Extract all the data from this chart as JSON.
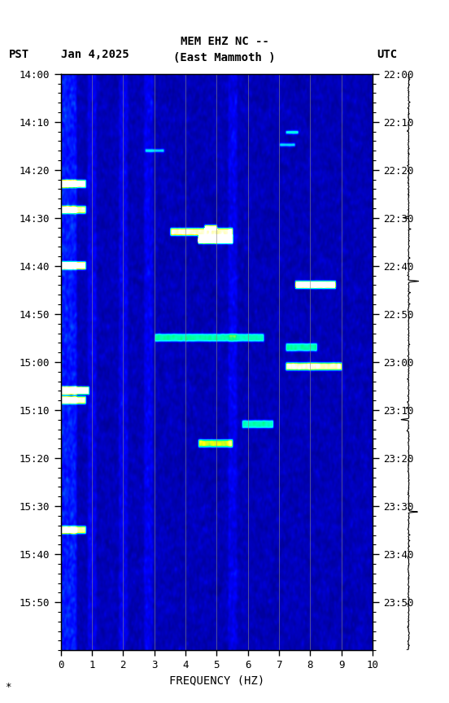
{
  "title_line1": "MEM EHZ NC --",
  "title_line2": "(East Mammoth )",
  "left_label": "PST",
  "date_label": "Jan 4,2025",
  "right_label": "UTC",
  "xlabel": "FREQUENCY (HZ)",
  "pst_times": [
    "14:00",
    "14:10",
    "14:20",
    "14:30",
    "14:40",
    "14:50",
    "15:00",
    "15:10",
    "15:20",
    "15:30",
    "15:40",
    "15:50"
  ],
  "utc_times": [
    "22:00",
    "22:10",
    "22:20",
    "22:30",
    "22:40",
    "22:50",
    "23:00",
    "23:10",
    "23:20",
    "23:30",
    "23:40",
    "23:50"
  ],
  "freq_min": 0,
  "freq_max": 10,
  "time_steps": 600,
  "freq_steps": 500,
  "background_color": "#ffffff",
  "font_family": "monospace",
  "seed": 42,
  "events": [
    {
      "t": 115,
      "f0": 0.0,
      "f1": 0.08,
      "amp": 4.0,
      "color": "cyan"
    },
    {
      "t": 142,
      "f0": 0.0,
      "f1": 0.08,
      "amp": 3.5,
      "color": "cyan"
    },
    {
      "t": 165,
      "f0": 0.35,
      "f1": 0.55,
      "amp": 3.5,
      "color": "cyan"
    },
    {
      "t": 173,
      "f0": 0.44,
      "f1": 0.55,
      "amp": 6.0,
      "color": "yellow"
    },
    {
      "t": 200,
      "f0": 0.0,
      "f1": 0.08,
      "amp": 4.0,
      "color": "cyan"
    },
    {
      "t": 220,
      "f0": 0.75,
      "f1": 0.88,
      "amp": 4.0,
      "color": "cyan"
    },
    {
      "t": 275,
      "f0": 0.3,
      "f1": 0.65,
      "amp": 2.5,
      "color": "cyan"
    },
    {
      "t": 285,
      "f0": 0.72,
      "f1": 0.82,
      "amp": 2.5,
      "color": "cyan"
    },
    {
      "t": 305,
      "f0": 0.72,
      "f1": 0.9,
      "amp": 3.5,
      "color": "cyan"
    },
    {
      "t": 330,
      "f0": 0.0,
      "f1": 0.09,
      "amp": 4.5,
      "color": "cyan"
    },
    {
      "t": 340,
      "f0": 0.0,
      "f1": 0.08,
      "amp": 3.5,
      "color": "cyan"
    },
    {
      "t": 365,
      "f0": 0.58,
      "f1": 0.68,
      "amp": 2.5,
      "color": "cyan"
    },
    {
      "t": 385,
      "f0": 0.44,
      "f1": 0.55,
      "amp": 3.0,
      "color": "cyan"
    },
    {
      "t": 475,
      "f0": 0.0,
      "f1": 0.08,
      "amp": 3.5,
      "color": "cyan"
    }
  ]
}
